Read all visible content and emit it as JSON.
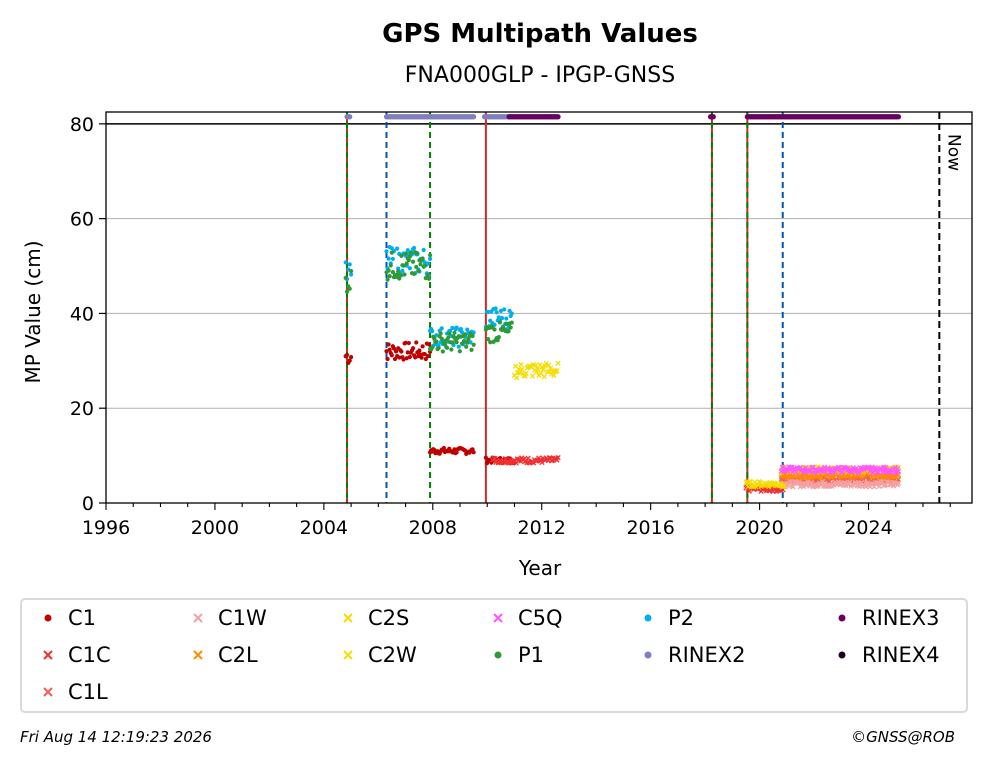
{
  "chart_data": {
    "type": "scatter",
    "title": "GPS Multipath Values",
    "subtitle": "FNA000GLP - IPGP-GNSS",
    "xlabel": "Year",
    "ylabel": "MP Value (cm)",
    "xlim": [
      1996,
      2027.8
    ],
    "ylim": [
      0,
      82.5
    ],
    "x_ticks": [
      "1996",
      "2000",
      "2004",
      "2008",
      "2012",
      "2016",
      "2020",
      "2024"
    ],
    "y_ticks": [
      "0",
      "20",
      "40",
      "60",
      "80"
    ],
    "grid": "horizontal",
    "legend_position": "below",
    "now_label": "Now",
    "now_year": 2026.6,
    "threshold_line": 80,
    "vertical_lines": [
      {
        "x": 2004.85,
        "color": "#d62728",
        "style": "solid"
      },
      {
        "x": 2004.85,
        "color": "#008000",
        "style": "dashed"
      },
      {
        "x": 2006.3,
        "color": "#0055b3",
        "style": "dashed"
      },
      {
        "x": 2007.9,
        "color": "#008000",
        "style": "dashed"
      },
      {
        "x": 2009.95,
        "color": "#d62728",
        "style": "solid"
      },
      {
        "x": 2018.25,
        "color": "#d62728",
        "style": "solid"
      },
      {
        "x": 2018.25,
        "color": "#008000",
        "style": "dashed"
      },
      {
        "x": 2019.55,
        "color": "#d62728",
        "style": "solid"
      },
      {
        "x": 2019.55,
        "color": "#008000",
        "style": "dashed"
      },
      {
        "x": 2020.85,
        "color": "#0055b3",
        "style": "dashed"
      }
    ],
    "series": [
      {
        "name": "C1",
        "color": "#c00000",
        "marker": "dot",
        "segments": [
          [
            2004.8,
            2005.0,
            31
          ],
          [
            2006.3,
            2007.9,
            32
          ],
          [
            2007.9,
            2009.5,
            11
          ],
          [
            2009.95,
            2011.0,
            9
          ]
        ]
      },
      {
        "name": "C1C",
        "color": "#f03030",
        "marker": "x",
        "segments": [
          [
            2010.2,
            2012.6,
            9
          ],
          [
            2019.5,
            2020.9,
            3
          ]
        ]
      },
      {
        "name": "C1L",
        "color": "#f06050",
        "marker": "x",
        "segments": [
          [
            2020.8,
            2025.1,
            5
          ]
        ]
      },
      {
        "name": "C1W",
        "color": "#f4a0a0",
        "marker": "x",
        "segments": [
          [
            2020.8,
            2025.1,
            4
          ]
        ]
      },
      {
        "name": "C2L",
        "color": "#ff8c00",
        "marker": "x",
        "segments": [
          [
            2020.8,
            2025.1,
            6
          ]
        ]
      },
      {
        "name": "C2S",
        "color": "#ffd700",
        "marker": "x",
        "segments": [
          [
            2020.8,
            2025.1,
            7
          ]
        ]
      },
      {
        "name": "C2W",
        "color": "#f5dd00",
        "marker": "x",
        "segments": [
          [
            2011.0,
            2012.6,
            28
          ],
          [
            2019.5,
            2020.9,
            4
          ]
        ]
      },
      {
        "name": "C5Q",
        "color": "#ff55ff",
        "marker": "x",
        "segments": [
          [
            2020.8,
            2025.1,
            7
          ]
        ]
      },
      {
        "name": "P2",
        "color": "#00aeef",
        "marker": "dot",
        "segments": [
          [
            2004.8,
            2005.0,
            48
          ],
          [
            2006.3,
            2007.9,
            51
          ],
          [
            2007.9,
            2009.5,
            35
          ],
          [
            2009.95,
            2010.9,
            39
          ]
        ]
      },
      {
        "name": "P1",
        "color": "#2e9a35",
        "marker": "dot",
        "segments": [
          [
            2004.8,
            2005.0,
            47
          ],
          [
            2006.3,
            2007.9,
            50
          ],
          [
            2007.9,
            2009.5,
            34
          ],
          [
            2009.95,
            2010.9,
            36
          ]
        ]
      },
      {
        "name": "RINEX2",
        "color": "#7f7fbf",
        "marker": "dot",
        "segments": [
          [
            2004.85,
            2004.95,
            81.5
          ],
          [
            2006.3,
            2009.5,
            81.5
          ],
          [
            2009.9,
            2010.8,
            81.5
          ]
        ]
      },
      {
        "name": "RINEX3",
        "color": "#6a0060",
        "marker": "dot",
        "segments": [
          [
            2010.8,
            2012.6,
            81.5
          ],
          [
            2018.2,
            2018.3,
            81.5
          ],
          [
            2019.55,
            2025.1,
            81.5
          ]
        ]
      },
      {
        "name": "RINEX4",
        "color": "#200020",
        "marker": "dot",
        "segments": []
      }
    ]
  },
  "legend": {
    "items": [
      {
        "label": "C1",
        "color": "#c00000",
        "marker": "dot"
      },
      {
        "label": "C1C",
        "color": "#f03030",
        "marker": "x"
      },
      {
        "label": "C1L",
        "color": "#f06050",
        "marker": "x"
      },
      {
        "label": "C1W",
        "color": "#f4a0a0",
        "marker": "x"
      },
      {
        "label": "C2L",
        "color": "#ff8c00",
        "marker": "x"
      },
      {
        "label": "C2S",
        "color": "#ffd700",
        "marker": "x"
      },
      {
        "label": "C2W",
        "color": "#f5dd00",
        "marker": "x"
      },
      {
        "label": "C5Q",
        "color": "#ff55ff",
        "marker": "x"
      },
      {
        "label": "P1",
        "color": "#2e9a35",
        "marker": "dot"
      },
      {
        "label": "P2",
        "color": "#00aeef",
        "marker": "dot"
      },
      {
        "label": "RINEX2",
        "color": "#7f7fbf",
        "marker": "dot"
      },
      {
        "label": "RINEX3",
        "color": "#6a0060",
        "marker": "dot"
      },
      {
        "label": "RINEX4",
        "color": "#200020",
        "marker": "dot"
      }
    ]
  },
  "footer": {
    "timestamp": "Fri Aug 14 12:19:23 2026",
    "credit": "©GNSS@ROB"
  }
}
